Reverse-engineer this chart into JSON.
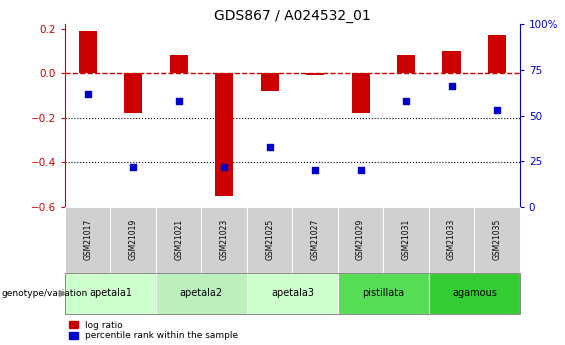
{
  "title": "GDS867 / A024532_01",
  "samples": [
    "GSM21017",
    "GSM21019",
    "GSM21021",
    "GSM21023",
    "GSM21025",
    "GSM21027",
    "GSM21029",
    "GSM21031",
    "GSM21033",
    "GSM21035"
  ],
  "log_ratio": [
    0.19,
    -0.18,
    0.08,
    -0.55,
    -0.08,
    -0.01,
    -0.18,
    0.08,
    0.1,
    0.17
  ],
  "percentile": [
    62,
    22,
    58,
    22,
    33,
    20,
    20,
    58,
    66,
    53
  ],
  "bar_color": "#cc0000",
  "dot_color": "#0000cc",
  "ylim_left": [
    -0.6,
    0.22
  ],
  "ylim_right": [
    0,
    100
  ],
  "yticks_left": [
    -0.6,
    -0.4,
    -0.2,
    0.0,
    0.2
  ],
  "yticks_right": [
    0,
    25,
    50,
    75,
    100
  ],
  "hline_color": "#cc0000",
  "dotted_line_color": "black",
  "group_spans": [
    [
      0,
      1,
      "apetala1",
      "#ccffcc"
    ],
    [
      2,
      3,
      "apetala2",
      "#bbf0bb"
    ],
    [
      4,
      5,
      "apetala3",
      "#ccffcc"
    ],
    [
      6,
      7,
      "pistillata",
      "#55dd55"
    ],
    [
      8,
      9,
      "agamous",
      "#33cc33"
    ]
  ],
  "genotype_label": "genotype/variation",
  "legend_log_ratio": "log ratio",
  "legend_percentile": "percentile rank within the sample",
  "background_color": "#ffffff",
  "sample_box_color": "#d0d0d0",
  "bar_width": 0.4
}
